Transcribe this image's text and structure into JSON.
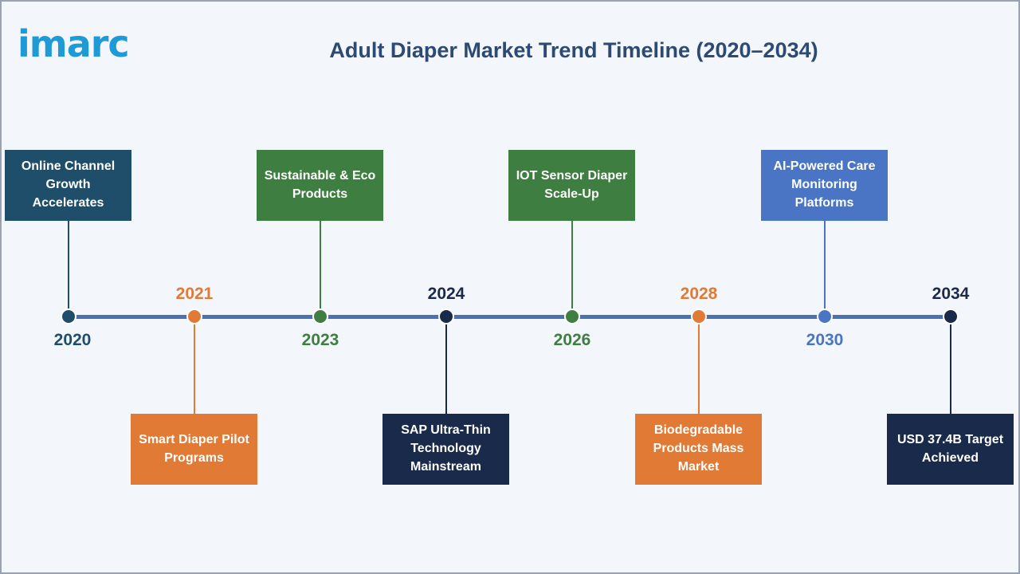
{
  "logo": "imarc",
  "title": "Adult Diaper Market Trend Timeline (2020–2034)",
  "colors": {
    "navy_teal": "#1f4e6b",
    "green": "#3e7e40",
    "orange": "#e07a35",
    "dark_navy": "#1a2a4a",
    "blue": "#4a75c4",
    "axis": "#4a72b0"
  },
  "milestones": [
    {
      "year": "2020",
      "label": "Online Channel Growth Accelerates",
      "color": "#1f4e6b"
    },
    {
      "year": "2021",
      "label": "Smart Diaper Pilot Programs",
      "color": "#e07a35"
    },
    {
      "year": "2023",
      "label": "Sustainable & Eco Products",
      "color": "#3e7e40"
    },
    {
      "year": "2024",
      "label": "SAP Ultra-Thin Technology Mainstream",
      "color": "#1a2a4a"
    },
    {
      "year": "2026",
      "label": "IOT Sensor Diaper Scale-Up",
      "color": "#3e7e40"
    },
    {
      "year": "2028",
      "label": "Biodegradable Products Mass Market",
      "color": "#e07a35"
    },
    {
      "year": "2030",
      "label": "AI-Powered Care Monitoring Platforms",
      "color": "#4a75c4"
    },
    {
      "year": "2034",
      "label": "USD 37.4B Target Achieved",
      "color": "#1a2a4a"
    }
  ]
}
